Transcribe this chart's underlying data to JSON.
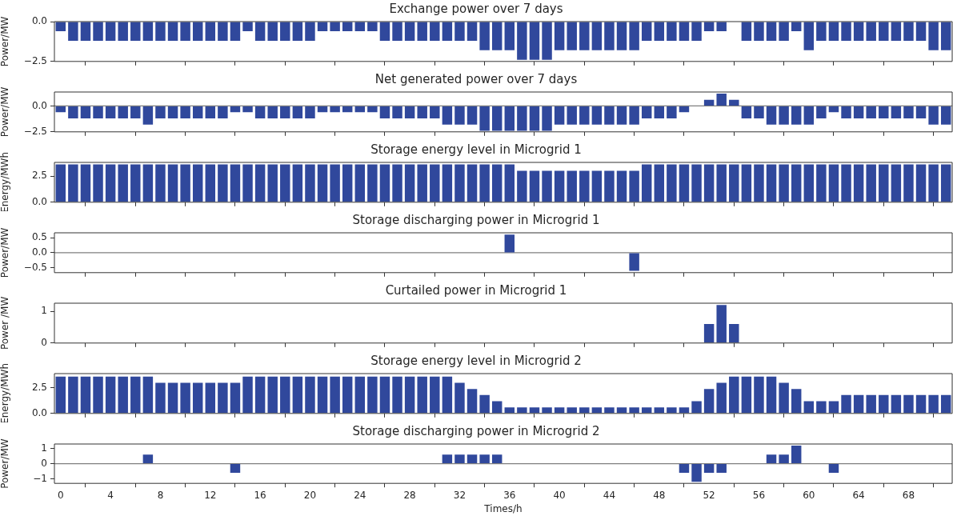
{
  "chart_data": [
    {
      "type": "bar",
      "title": "Exchange power over 7 days",
      "ylabel": "Power/MW",
      "color": "#30489c",
      "tick_labels": "y",
      "xlim": [
        -0.5,
        71.5
      ],
      "xticks": [
        0,
        4,
        8,
        12,
        16,
        20,
        24,
        28,
        32,
        36,
        40,
        44,
        48,
        52,
        56,
        60,
        64,
        68
      ],
      "ylim": [
        -2.5,
        0
      ],
      "yticks": [
        {
          "value": 0,
          "label": "0.0"
        },
        {
          "value": -2.5,
          "label": "−2.5"
        }
      ],
      "x": [
        0,
        1,
        2,
        3,
        4,
        5,
        6,
        7,
        8,
        9,
        10,
        11,
        12,
        13,
        14,
        15,
        16,
        17,
        18,
        19,
        20,
        21,
        22,
        23,
        24,
        25,
        26,
        27,
        28,
        29,
        30,
        31,
        32,
        33,
        34,
        35,
        36,
        37,
        38,
        39,
        40,
        41,
        42,
        43,
        44,
        45,
        46,
        47,
        48,
        49,
        50,
        51,
        52,
        53,
        54,
        55,
        56,
        57,
        58,
        59,
        60,
        61,
        62,
        63,
        64,
        65,
        66,
        67,
        68,
        69,
        70,
        71
      ],
      "values": [
        -0.6,
        -1.2,
        -1.2,
        -1.2,
        -1.2,
        -1.2,
        -1.2,
        -1.2,
        -1.2,
        -1.2,
        -1.2,
        -1.2,
        -1.2,
        -1.2,
        -1.2,
        -0.6,
        -1.2,
        -1.2,
        -1.2,
        -1.2,
        -1.2,
        -0.6,
        -0.6,
        -0.6,
        -0.6,
        -0.6,
        -1.2,
        -1.2,
        -1.2,
        -1.2,
        -1.2,
        -1.2,
        -1.2,
        -1.2,
        -1.8,
        -1.8,
        -1.8,
        -2.4,
        -2.4,
        -2.4,
        -1.8,
        -1.8,
        -1.8,
        -1.8,
        -1.8,
        -1.8,
        -1.8,
        -1.2,
        -1.2,
        -1.2,
        -1.2,
        -1.2,
        -0.6,
        -0.6,
        0,
        -1.2,
        -1.2,
        -1.2,
        -1.2,
        -0.6,
        -1.8,
        -1.2,
        -1.2,
        -1.2,
        -1.2,
        -1.2,
        -1.2,
        -1.2,
        -1.2,
        -1.2,
        -1.8,
        -1.8
      ]
    },
    {
      "type": "bar",
      "title": "Net generated power over 7 days",
      "ylabel": "Power/MW",
      "color": "#30489c",
      "tick_labels": "y",
      "xlim": [
        -0.5,
        71.5
      ],
      "xticks": [
        0,
        4,
        8,
        12,
        16,
        20,
        24,
        28,
        32,
        36,
        40,
        44,
        48,
        52,
        56,
        60,
        64,
        68
      ],
      "ylim": [
        -2.5,
        1.35
      ],
      "yticks": [
        {
          "value": 0,
          "label": "0.0"
        },
        {
          "value": -2.5,
          "label": "−2.5"
        }
      ],
      "ref_lines": [
        {
          "axis": "y",
          "value": 0,
          "color": "#7f7f7f"
        }
      ],
      "x": [
        0,
        1,
        2,
        3,
        4,
        5,
        6,
        7,
        8,
        9,
        10,
        11,
        12,
        13,
        14,
        15,
        16,
        17,
        18,
        19,
        20,
        21,
        22,
        23,
        24,
        25,
        26,
        27,
        28,
        29,
        30,
        31,
        32,
        33,
        34,
        35,
        36,
        37,
        38,
        39,
        40,
        41,
        42,
        43,
        44,
        45,
        46,
        47,
        48,
        49,
        50,
        51,
        52,
        53,
        54,
        55,
        56,
        57,
        58,
        59,
        60,
        61,
        62,
        63,
        64,
        65,
        66,
        67,
        68,
        69,
        70,
        71
      ],
      "values": [
        -0.6,
        -1.2,
        -1.2,
        -1.2,
        -1.2,
        -1.2,
        -1.2,
        -1.8,
        -1.2,
        -1.2,
        -1.2,
        -1.2,
        -1.2,
        -1.2,
        -0.6,
        -0.6,
        -1.2,
        -1.2,
        -1.2,
        -1.2,
        -1.2,
        -0.6,
        -0.6,
        -0.6,
        -0.6,
        -0.6,
        -1.2,
        -1.2,
        -1.2,
        -1.2,
        -1.2,
        -1.8,
        -1.8,
        -1.8,
        -2.4,
        -2.4,
        -2.4,
        -2.4,
        -2.4,
        -2.4,
        -1.8,
        -1.8,
        -1.8,
        -1.8,
        -1.8,
        -1.8,
        -1.8,
        -1.2,
        -1.2,
        -1.2,
        -0.6,
        0,
        0.6,
        1.2,
        0.6,
        -1.2,
        -1.2,
        -1.8,
        -1.8,
        -1.8,
        -1.8,
        -1.2,
        -0.6,
        -1.2,
        -1.2,
        -1.2,
        -1.2,
        -1.2,
        -1.2,
        -1.2,
        -1.8,
        -1.8
      ]
    },
    {
      "type": "bar",
      "title": "Storage energy level in Microgrid 1",
      "ylabel": "Energy/MWh",
      "color": "#30489c",
      "tick_labels": "y",
      "xlim": [
        -0.5,
        71.5
      ],
      "xticks": [
        0,
        4,
        8,
        12,
        16,
        20,
        24,
        28,
        32,
        36,
        40,
        44,
        48,
        52,
        56,
        60,
        64,
        68
      ],
      "ylim": [
        0,
        3.8
      ],
      "yticks": [
        {
          "value": 0,
          "label": "0.0"
        },
        2.5
      ],
      "x": [
        0,
        1,
        2,
        3,
        4,
        5,
        6,
        7,
        8,
        9,
        10,
        11,
        12,
        13,
        14,
        15,
        16,
        17,
        18,
        19,
        20,
        21,
        22,
        23,
        24,
        25,
        26,
        27,
        28,
        29,
        30,
        31,
        32,
        33,
        34,
        35,
        36,
        37,
        38,
        39,
        40,
        41,
        42,
        43,
        44,
        45,
        46,
        47,
        48,
        49,
        50,
        51,
        52,
        53,
        54,
        55,
        56,
        57,
        58,
        59,
        60,
        61,
        62,
        63,
        64,
        65,
        66,
        67,
        68,
        69,
        70,
        71
      ],
      "values": [
        3.6,
        3.6,
        3.6,
        3.6,
        3.6,
        3.6,
        3.6,
        3.6,
        3.6,
        3.6,
        3.6,
        3.6,
        3.6,
        3.6,
        3.6,
        3.6,
        3.6,
        3.6,
        3.6,
        3.6,
        3.6,
        3.6,
        3.6,
        3.6,
        3.6,
        3.6,
        3.6,
        3.6,
        3.6,
        3.6,
        3.6,
        3.6,
        3.6,
        3.6,
        3.6,
        3.6,
        3.6,
        3.0,
        3.0,
        3.0,
        3.0,
        3.0,
        3.0,
        3.0,
        3.0,
        3.0,
        3.0,
        3.6,
        3.6,
        3.6,
        3.6,
        3.6,
        3.6,
        3.6,
        3.6,
        3.6,
        3.6,
        3.6,
        3.6,
        3.6,
        3.6,
        3.6,
        3.6,
        3.6,
        3.6,
        3.6,
        3.6,
        3.6,
        3.6,
        3.6,
        3.6,
        3.6
      ]
    },
    {
      "type": "bar",
      "title": "Storage discharging power in Microgrid 1",
      "ylabel": "Power/MW",
      "color": "#30489c",
      "tick_labels": "y",
      "xlim": [
        -0.5,
        71.5
      ],
      "xticks": [
        0,
        4,
        8,
        12,
        16,
        20,
        24,
        28,
        32,
        36,
        40,
        44,
        48,
        52,
        56,
        60,
        64,
        68
      ],
      "ylim": [
        -0.66,
        0.66
      ],
      "yticks": [
        0.5,
        {
          "value": 0,
          "label": "0.0"
        },
        {
          "value": -0.5,
          "label": "−0.5"
        }
      ],
      "ref_lines": [
        {
          "axis": "y",
          "value": 0,
          "color": "#7f7f7f"
        }
      ],
      "x": [
        0,
        1,
        2,
        3,
        4,
        5,
        6,
        7,
        8,
        9,
        10,
        11,
        12,
        13,
        14,
        15,
        16,
        17,
        18,
        19,
        20,
        21,
        22,
        23,
        24,
        25,
        26,
        27,
        28,
        29,
        30,
        31,
        32,
        33,
        34,
        35,
        36,
        37,
        38,
        39,
        40,
        41,
        42,
        43,
        44,
        45,
        46,
        47,
        48,
        49,
        50,
        51,
        52,
        53,
        54,
        55,
        56,
        57,
        58,
        59,
        60,
        61,
        62,
        63,
        64,
        65,
        66,
        67,
        68,
        69,
        70,
        71
      ],
      "values": [
        0,
        0,
        0,
        0,
        0,
        0,
        0,
        0,
        0,
        0,
        0,
        0,
        0,
        0,
        0,
        0,
        0,
        0,
        0,
        0,
        0,
        0,
        0,
        0,
        0,
        0,
        0,
        0,
        0,
        0,
        0,
        0,
        0,
        0,
        0,
        0,
        0.6,
        0,
        0,
        0,
        0,
        0,
        0,
        0,
        0,
        0,
        -0.6,
        0,
        0,
        0,
        0,
        0,
        0,
        0,
        0,
        0,
        0,
        0,
        0,
        0,
        0,
        0,
        0,
        0,
        0,
        0,
        0,
        0,
        0,
        0,
        0,
        0
      ]
    },
    {
      "type": "bar",
      "title": "Curtailed power in Microgrid 1",
      "ylabel": "Power /MW",
      "color": "#30489c",
      "tick_labels": "y",
      "xlim": [
        -0.5,
        71.5
      ],
      "xticks": [
        0,
        4,
        8,
        12,
        16,
        20,
        24,
        28,
        32,
        36,
        40,
        44,
        48,
        52,
        56,
        60,
        64,
        68
      ],
      "ylim": [
        0,
        1.26
      ],
      "yticks": [
        1,
        0
      ],
      "x": [
        0,
        1,
        2,
        3,
        4,
        5,
        6,
        7,
        8,
        9,
        10,
        11,
        12,
        13,
        14,
        15,
        16,
        17,
        18,
        19,
        20,
        21,
        22,
        23,
        24,
        25,
        26,
        27,
        28,
        29,
        30,
        31,
        32,
        33,
        34,
        35,
        36,
        37,
        38,
        39,
        40,
        41,
        42,
        43,
        44,
        45,
        46,
        47,
        48,
        49,
        50,
        51,
        52,
        53,
        54,
        55,
        56,
        57,
        58,
        59,
        60,
        61,
        62,
        63,
        64,
        65,
        66,
        67,
        68,
        69,
        70,
        71
      ],
      "values": [
        0,
        0,
        0,
        0,
        0,
        0,
        0,
        0,
        0,
        0,
        0,
        0,
        0,
        0,
        0,
        0,
        0,
        0,
        0,
        0,
        0,
        0,
        0,
        0,
        0,
        0,
        0,
        0,
        0,
        0,
        0,
        0,
        0,
        0,
        0,
        0,
        0,
        0,
        0,
        0,
        0,
        0,
        0,
        0,
        0,
        0,
        0,
        0,
        0,
        0,
        0,
        0,
        0.6,
        1.2,
        0.6,
        0,
        0,
        0,
        0,
        0,
        0,
        0,
        0,
        0,
        0,
        0,
        0,
        0,
        0,
        0,
        0,
        0
      ]
    },
    {
      "type": "bar",
      "title": "Storage energy level in Microgrid 2",
      "ylabel": "Energy/MWh",
      "color": "#30489c",
      "tick_labels": "y",
      "xlim": [
        -0.5,
        71.5
      ],
      "xticks": [
        0,
        4,
        8,
        12,
        16,
        20,
        24,
        28,
        32,
        36,
        40,
        44,
        48,
        52,
        56,
        60,
        64,
        68
      ],
      "ylim": [
        0,
        3.9
      ],
      "yticks": [
        {
          "value": 0,
          "label": "0.0"
        },
        2.5
      ],
      "x": [
        0,
        1,
        2,
        3,
        4,
        5,
        6,
        7,
        8,
        9,
        10,
        11,
        12,
        13,
        14,
        15,
        16,
        17,
        18,
        19,
        20,
        21,
        22,
        23,
        24,
        25,
        26,
        27,
        28,
        29,
        30,
        31,
        32,
        33,
        34,
        35,
        36,
        37,
        38,
        39,
        40,
        41,
        42,
        43,
        44,
        45,
        46,
        47,
        48,
        49,
        50,
        51,
        52,
        53,
        54,
        55,
        56,
        57,
        58,
        59,
        60,
        61,
        62,
        63,
        64,
        65,
        66,
        67,
        68,
        69,
        70,
        71
      ],
      "values": [
        3.6,
        3.6,
        3.6,
        3.6,
        3.6,
        3.6,
        3.6,
        3.6,
        3.0,
        3.0,
        3.0,
        3.0,
        3.0,
        3.0,
        3.0,
        3.6,
        3.6,
        3.6,
        3.6,
        3.6,
        3.6,
        3.6,
        3.6,
        3.6,
        3.6,
        3.6,
        3.6,
        3.6,
        3.6,
        3.6,
        3.6,
        3.6,
        3.0,
        2.4,
        1.8,
        1.2,
        0.6,
        0.6,
        0.6,
        0.6,
        0.6,
        0.6,
        0.6,
        0.6,
        0.6,
        0.6,
        0.6,
        0.6,
        0.6,
        0.6,
        0.6,
        1.2,
        2.4,
        3.0,
        3.6,
        3.6,
        3.6,
        3.6,
        3.0,
        2.4,
        1.2,
        1.2,
        1.2,
        1.8,
        1.8,
        1.8,
        1.8,
        1.8,
        1.8,
        1.8,
        1.8,
        1.8
      ]
    },
    {
      "type": "bar",
      "title": "Storage discharging power in Microgrid 2",
      "ylabel": "Power/MW",
      "xlabel": "Times/h",
      "color": "#30489c",
      "xlim": [
        -0.5,
        71.5
      ],
      "xticks": [
        0,
        4,
        8,
        12,
        16,
        20,
        24,
        28,
        32,
        36,
        40,
        44,
        48,
        52,
        56,
        60,
        64,
        68
      ],
      "ylim": [
        -1.3,
        1.3
      ],
      "yticks": [
        1,
        0,
        {
          "value": -1,
          "label": "−1"
        }
      ],
      "ref_lines": [
        {
          "axis": "y",
          "value": 0,
          "color": "#7f7f7f"
        }
      ],
      "x": [
        0,
        1,
        2,
        3,
        4,
        5,
        6,
        7,
        8,
        9,
        10,
        11,
        12,
        13,
        14,
        15,
        16,
        17,
        18,
        19,
        20,
        21,
        22,
        23,
        24,
        25,
        26,
        27,
        28,
        29,
        30,
        31,
        32,
        33,
        34,
        35,
        36,
        37,
        38,
        39,
        40,
        41,
        42,
        43,
        44,
        45,
        46,
        47,
        48,
        49,
        50,
        51,
        52,
        53,
        54,
        55,
        56,
        57,
        58,
        59,
        60,
        61,
        62,
        63,
        64,
        65,
        66,
        67,
        68,
        69,
        70,
        71
      ],
      "values": [
        0,
        0,
        0,
        0,
        0,
        0,
        0,
        0.6,
        0,
        0,
        0,
        0,
        0,
        0,
        -0.6,
        0,
        0,
        0,
        0,
        0,
        0,
        0,
        0,
        0,
        0,
        0,
        0,
        0,
        0,
        0,
        0,
        0.6,
        0.6,
        0.6,
        0.6,
        0.6,
        0,
        0,
        0,
        0,
        0,
        0,
        0,
        0,
        0,
        0,
        0,
        0,
        0,
        0,
        -0.6,
        -1.2,
        -0.6,
        -0.6,
        0,
        0,
        0,
        0.6,
        0.6,
        1.2,
        0,
        0,
        -0.6,
        0,
        0,
        0,
        0,
        0,
        0,
        0,
        0,
        0
      ]
    }
  ]
}
